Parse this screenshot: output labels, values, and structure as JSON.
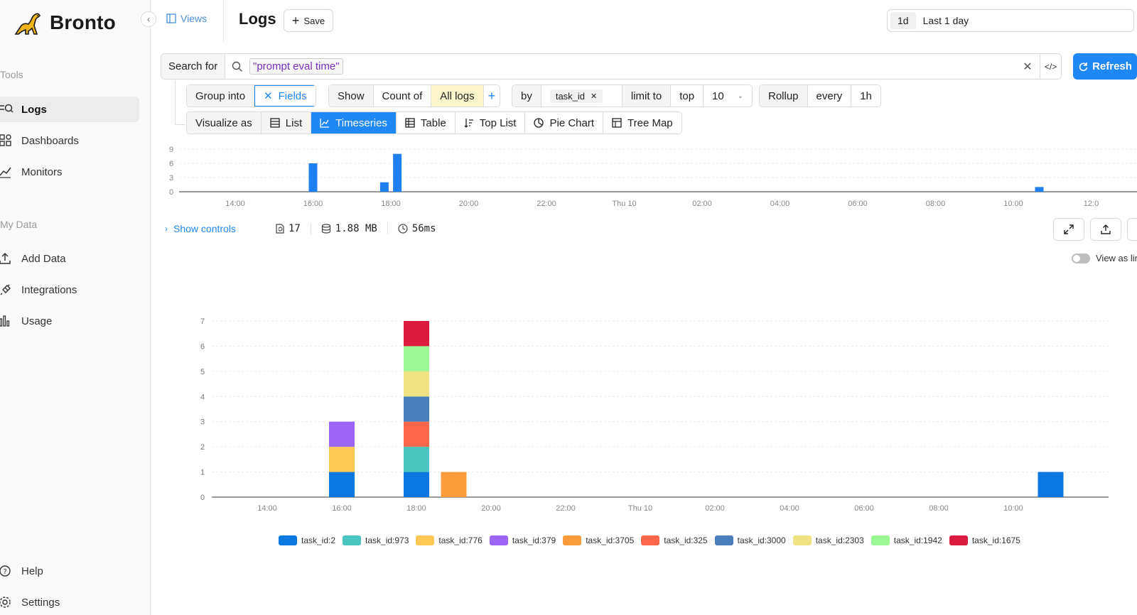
{
  "sidebar": {
    "logo_text": "Bronto",
    "sections": [
      "Tools",
      "My Data"
    ],
    "tools": [
      {
        "label": "Logs",
        "icon": "logs-search-icon",
        "active": true
      },
      {
        "label": "Dashboards",
        "icon": "dashboards-icon"
      },
      {
        "label": "Monitors",
        "icon": "monitors-icon"
      }
    ],
    "my_data": [
      {
        "label": "Add Data",
        "icon": "upload-icon"
      },
      {
        "label": "Integrations",
        "icon": "integrations-icon"
      },
      {
        "label": "Usage",
        "icon": "usage-icon"
      }
    ],
    "bottom": [
      {
        "label": "Help",
        "icon": "help-icon"
      },
      {
        "label": "Settings",
        "icon": "settings-icon"
      }
    ]
  },
  "header": {
    "views_label": "Views",
    "title": "Logs",
    "save_label": "Save",
    "time_pill": "1d",
    "time_label": "Last 1 day"
  },
  "search": {
    "label": "Search for",
    "query": "\"prompt eval time\"",
    "refresh_label": "Refresh"
  },
  "controls": {
    "group_into": "Group into",
    "fields": "Fields",
    "show": "Show",
    "count_of": "Count of",
    "all_logs": "All logs",
    "plus": "+",
    "by": "by",
    "by_chip": "task_id",
    "limit_to": "limit to",
    "top": "top",
    "limit_value": "10",
    "rollup": "Rollup",
    "every": "every",
    "rollup_value": "1h",
    "visualize_as": "Visualize as",
    "viz_options": [
      {
        "label": "List",
        "icon": "list-icon"
      },
      {
        "label": "Timeseries",
        "icon": "timeseries-icon",
        "active": true
      },
      {
        "label": "Table",
        "icon": "table-icon"
      },
      {
        "label": "Top List",
        "icon": "top-list-icon"
      },
      {
        "label": "Pie Chart",
        "icon": "pie-chart-icon"
      },
      {
        "label": "Tree Map",
        "icon": "tree-map-icon"
      }
    ]
  },
  "stats": {
    "show_controls": "Show controls",
    "count": "17",
    "size": "1.88 MB",
    "duration": "56ms",
    "view_as_label": "View as lin"
  },
  "colors": {
    "accent": "#1e88f5",
    "bar": "#1e7ff0"
  },
  "chart_data": [
    {
      "type": "bar",
      "name": "overview",
      "x_ticks": [
        "14:00",
        "16:00",
        "18:00",
        "20:00",
        "22:00",
        "Thu 10",
        "02:00",
        "04:00",
        "06:00",
        "08:00",
        "10:00",
        "12:0"
      ],
      "y_ticks": [
        "0",
        "3",
        "6",
        "9"
      ],
      "ylim": [
        0,
        9
      ],
      "bars": [
        {
          "x": "16:00",
          "value": 6
        },
        {
          "x": "17:50",
          "value": 2
        },
        {
          "x": "18:10",
          "value": 8
        },
        {
          "x": "10:40",
          "value": 1
        }
      ]
    },
    {
      "type": "bar",
      "stacked": true,
      "name": "main",
      "x_ticks": [
        "14:00",
        "16:00",
        "18:00",
        "20:00",
        "22:00",
        "Thu 10",
        "02:00",
        "04:00",
        "06:00",
        "08:00",
        "10:00"
      ],
      "y_ticks": [
        "0",
        "1",
        "2",
        "3",
        "4",
        "5",
        "6",
        "7"
      ],
      "ylim": [
        0,
        7
      ],
      "categories": [
        "16:00",
        "18:00",
        "19:00",
        "11:00"
      ],
      "series": [
        {
          "name": "task_id:2",
          "color": "#0a78e0",
          "values": [
            1,
            1,
            0,
            1
          ]
        },
        {
          "name": "task_id:973",
          "color": "#4bc5c0",
          "values": [
            0,
            1,
            0,
            0
          ]
        },
        {
          "name": "task_id:776",
          "color": "#fdc853",
          "values": [
            1,
            0,
            0,
            0
          ]
        },
        {
          "name": "task_id:379",
          "color": "#9b66f5",
          "values": [
            1,
            0,
            0,
            0
          ]
        },
        {
          "name": "task_id:3705",
          "color": "#fb9c3a",
          "values": [
            0,
            0,
            1,
            0
          ]
        },
        {
          "name": "task_id:325",
          "color": "#fc664a",
          "values": [
            0,
            1,
            0,
            0
          ]
        },
        {
          "name": "task_id:3000",
          "color": "#4a7fbc",
          "values": [
            0,
            1,
            0,
            0
          ]
        },
        {
          "name": "task_id:2303",
          "color": "#efe283",
          "values": [
            0,
            1,
            0,
            0
          ]
        },
        {
          "name": "task_id:1942",
          "color": "#9af794",
          "values": [
            0,
            1,
            0,
            0
          ]
        },
        {
          "name": "task_id:1675",
          "color": "#db1c40",
          "values": [
            0,
            1,
            0,
            0
          ]
        }
      ]
    }
  ]
}
